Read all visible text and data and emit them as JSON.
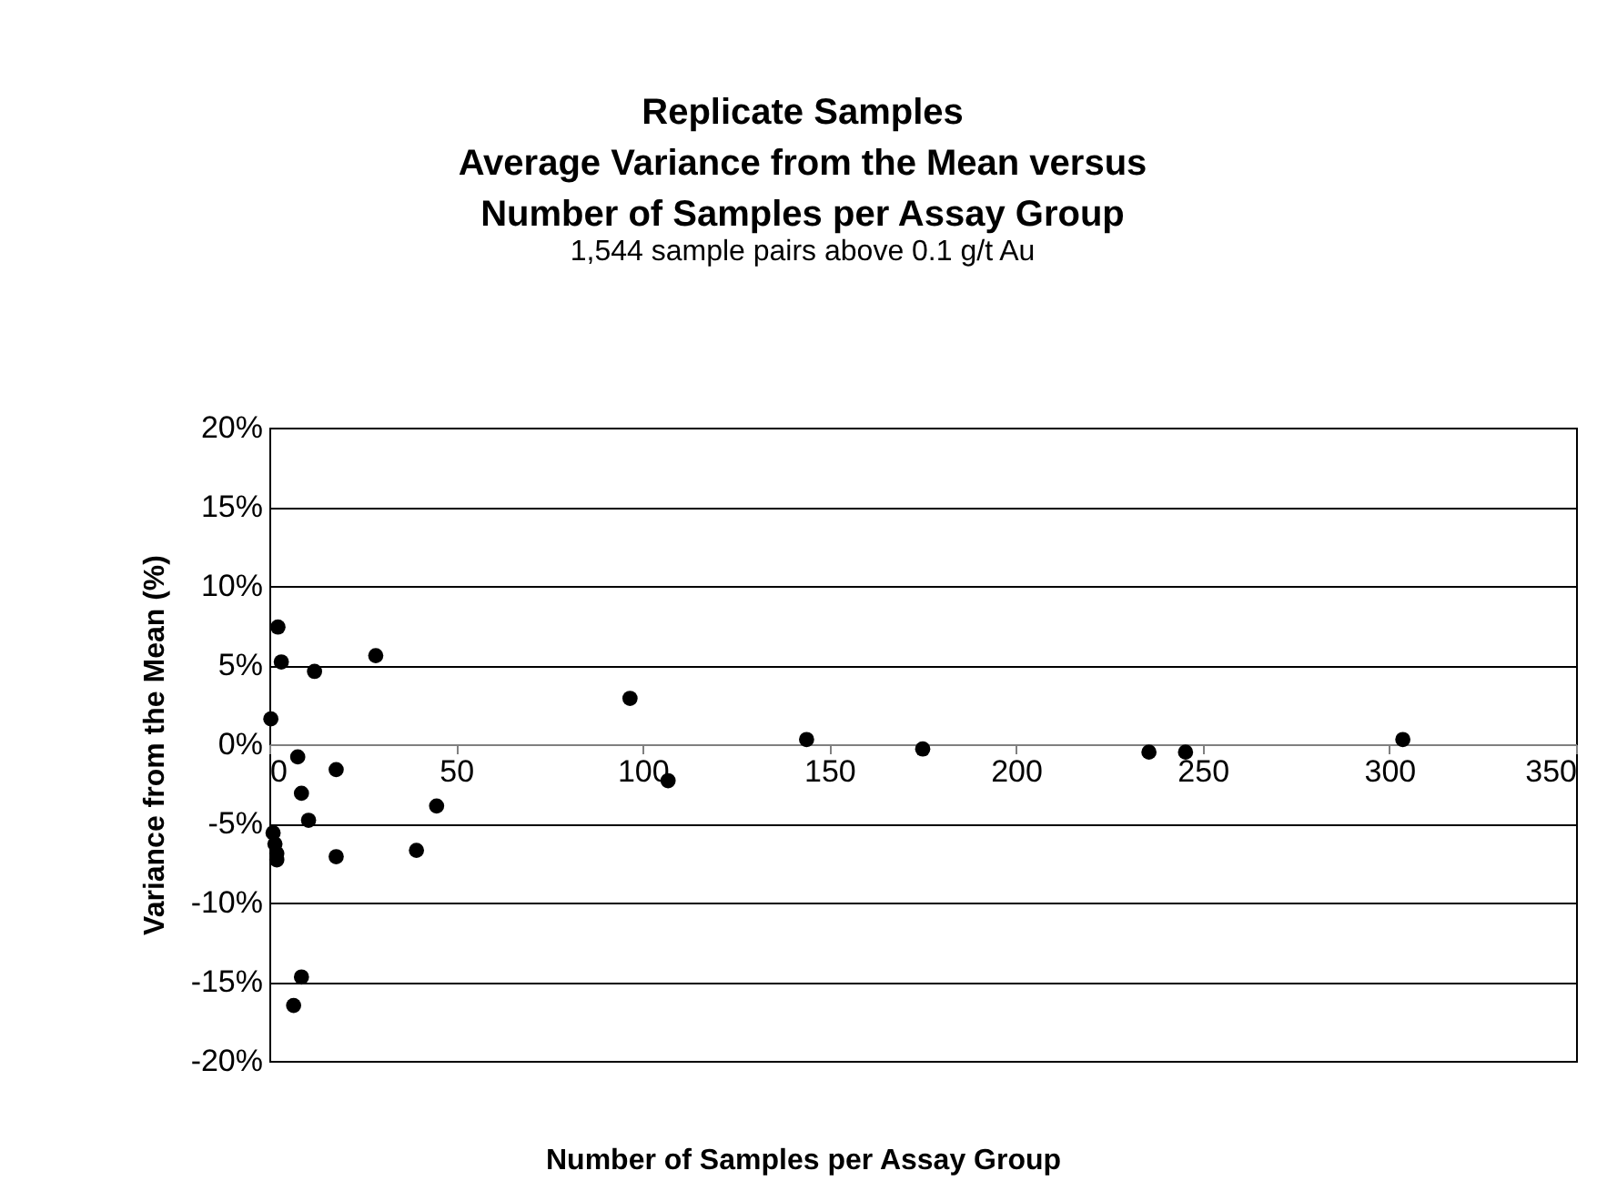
{
  "chart_data": {
    "type": "scatter",
    "title": [
      "Replicate Samples",
      "Average Variance from the Mean versus",
      "Number of Samples per Assay Group"
    ],
    "subtitle": "1,544 sample pairs above 0.1 g/t Au",
    "xlabel": "Number of Samples per Assay Group",
    "ylabel": "Variance from the Mean (%)",
    "x": [
      0.4,
      1,
      1.5,
      2,
      2,
      2.3,
      3.2,
      6.5,
      7.6,
      8.6,
      8.6,
      10.5,
      12.1,
      17.9,
      17.9,
      28.5,
      39.4,
      44.8,
      96.6,
      106.8,
      143.9,
      175,
      235.6,
      245.4,
      303.6
    ],
    "series": [
      {
        "color": "#000000",
        "values": [
          1.6,
          -5.6,
          -6.3,
          -6.9,
          -7.3,
          7.4,
          5.2,
          -16.5,
          -0.8,
          -3.1,
          -14.7,
          -4.8,
          4.6,
          -1.6,
          -7.1,
          5.6,
          -6.7,
          -3.9,
          2.9,
          -2.3,
          0.3,
          -0.3,
          -0.5,
          -0.5,
          0.3
        ]
      }
    ],
    "xlim": [
      0,
      350
    ],
    "xticks": [
      0,
      50,
      100,
      150,
      200,
      250,
      300,
      350
    ],
    "ylim": [
      -20,
      20
    ],
    "yticks": [
      {
        "value": -20,
        "label": "-20%"
      },
      {
        "value": -15,
        "label": "-15%"
      },
      {
        "value": -10,
        "label": "-10%"
      },
      {
        "value": -5,
        "label": "-5%"
      },
      {
        "value": 0,
        "label": "0%"
      },
      {
        "value": 5,
        "label": "5%"
      },
      {
        "value": 10,
        "label": "10%"
      },
      {
        "value": 15,
        "label": "15%"
      },
      {
        "value": 20,
        "label": "20%"
      }
    ],
    "grid": "y",
    "marker": "circle"
  }
}
